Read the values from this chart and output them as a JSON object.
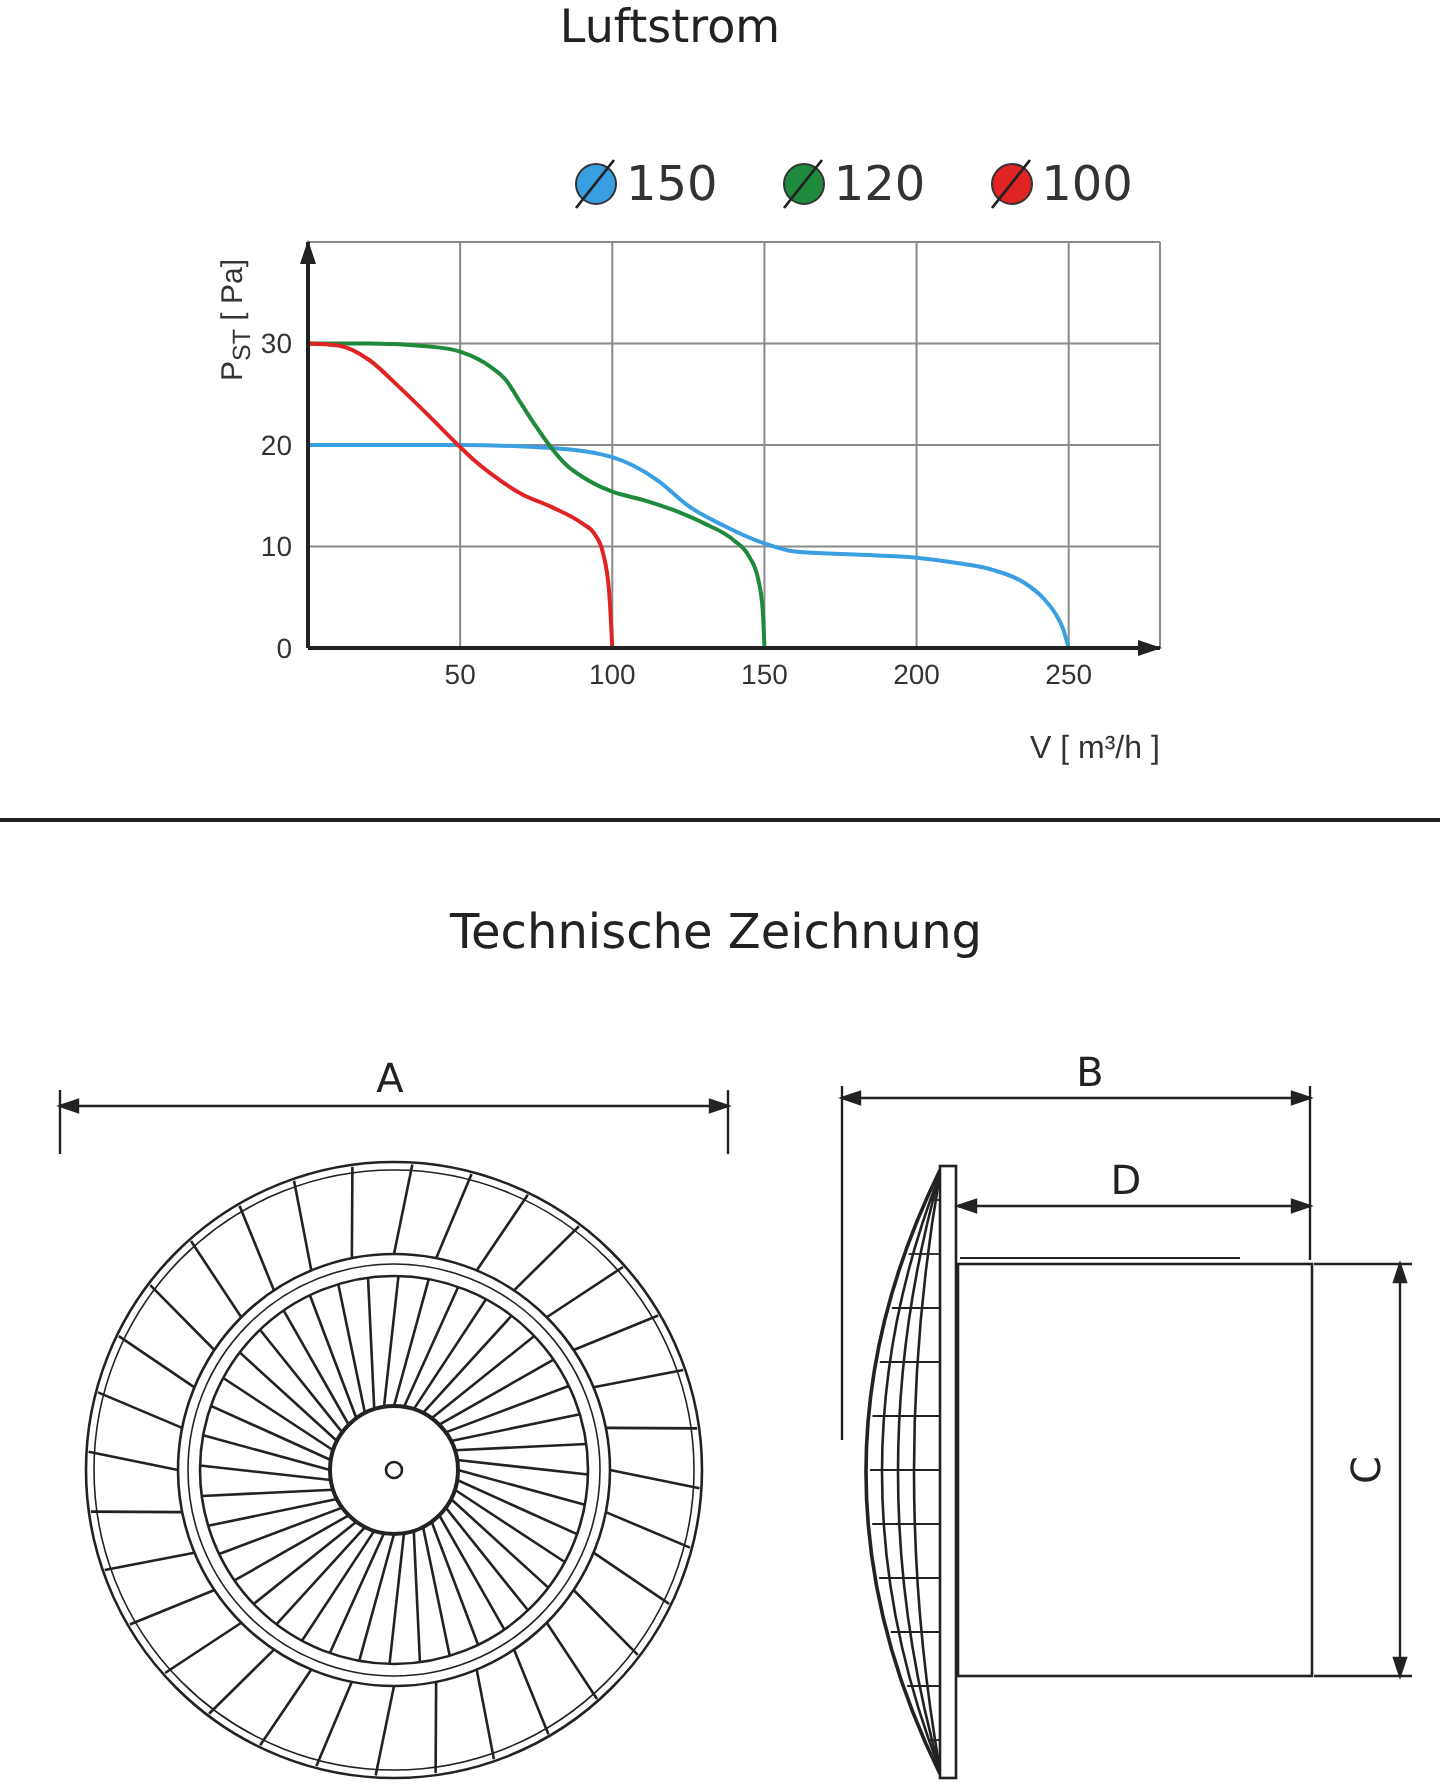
{
  "chart_data": {
    "type": "line",
    "title": "Luftstrom",
    "xlabel": "V [ m³/h ]",
    "ylabel": "P$_{ST}$ [ Pa]",
    "xlim": [
      0,
      280
    ],
    "ylim": [
      0,
      40
    ],
    "xticks": [
      50,
      100,
      150,
      200,
      250
    ],
    "yticks": [
      0,
      10,
      20,
      30
    ],
    "grid": true,
    "legend": "top right",
    "marker": "none",
    "line_style": "solid",
    "annotations": [
      "Technische Zeichnung",
      "A",
      "B",
      "C",
      "D"
    ],
    "series": [
      {
        "name": "150",
        "color": "#3a9fe0",
        "x": [
          0,
          25,
          50,
          80,
          100,
          115,
          125,
          137,
          150,
          160,
          180,
          200,
          215,
          225,
          235,
          242,
          246,
          248,
          250
        ],
        "values": [
          20,
          20,
          20,
          19.7,
          18.8,
          16.5,
          14,
          12,
          10.3,
          9.5,
          9.2,
          8.9,
          8.3,
          7.7,
          6.5,
          4.8,
          3.2,
          2,
          0
        ]
      },
      {
        "name": "120",
        "color": "#1f8a3c",
        "x": [
          0,
          20,
          40,
          50,
          60,
          65,
          70,
          75,
          80,
          85,
          90,
          100,
          110,
          120,
          130,
          140,
          145,
          148,
          149.5,
          150
        ],
        "values": [
          30,
          30,
          29.7,
          29.2,
          27.7,
          26.4,
          24.1,
          21.8,
          19.7,
          18,
          16.9,
          15.4,
          14.6,
          13.6,
          12.3,
          10.6,
          9,
          6.7,
          3.5,
          0
        ]
      },
      {
        "name": "100",
        "color": "#e02424",
        "x": [
          0,
          10,
          20,
          30,
          40,
          50,
          55,
          60,
          70,
          80,
          90,
          94,
          97,
          99,
          100
        ],
        "values": [
          30,
          29.8,
          28.4,
          25.7,
          22.8,
          19.8,
          18.4,
          17.2,
          15.2,
          13.9,
          12.3,
          11.3,
          9.3,
          5.4,
          0
        ]
      }
    ]
  }
}
